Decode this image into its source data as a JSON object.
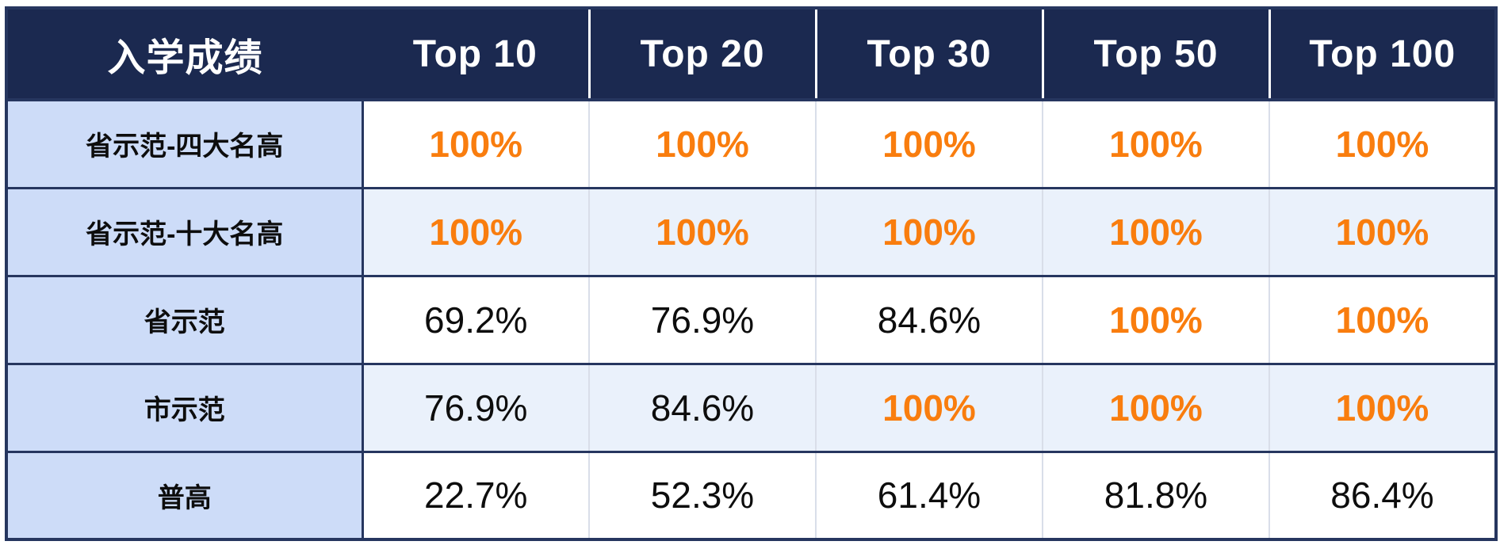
{
  "colors": {
    "header_bg": "#1B2950",
    "header_text": "#FFFFFF",
    "border_navy": "#26365F",
    "label_cell_bg": "#CDDCF8",
    "alt_row_bg": "#EAF1FB",
    "row_bg": "#FFFFFF",
    "value_text": "#0D0D0D",
    "highlight_orange": "#F97D0E",
    "column_separator_light": "#D9DEE9"
  },
  "table": {
    "corner_label": "入学成绩",
    "columns": [
      "Top 10",
      "Top 20",
      "Top 30",
      "Top 50",
      "Top 100"
    ],
    "rows": [
      {
        "label": "省示范-四大名高",
        "cells": [
          {
            "text": "100%",
            "highlight": true
          },
          {
            "text": "100%",
            "highlight": true
          },
          {
            "text": "100%",
            "highlight": true
          },
          {
            "text": "100%",
            "highlight": true
          },
          {
            "text": "100%",
            "highlight": true
          }
        ]
      },
      {
        "label": "省示范-十大名高",
        "cells": [
          {
            "text": "100%",
            "highlight": true
          },
          {
            "text": "100%",
            "highlight": true
          },
          {
            "text": "100%",
            "highlight": true
          },
          {
            "text": "100%",
            "highlight": true
          },
          {
            "text": "100%",
            "highlight": true
          }
        ]
      },
      {
        "label": "省示范",
        "cells": [
          {
            "text": "69.2%",
            "highlight": false
          },
          {
            "text": "76.9%",
            "highlight": false
          },
          {
            "text": "84.6%",
            "highlight": false
          },
          {
            "text": "100%",
            "highlight": true
          },
          {
            "text": "100%",
            "highlight": true
          }
        ]
      },
      {
        "label": "市示范",
        "cells": [
          {
            "text": "76.9%",
            "highlight": false
          },
          {
            "text": "84.6%",
            "highlight": false
          },
          {
            "text": "100%",
            "highlight": true
          },
          {
            "text": "100%",
            "highlight": true
          },
          {
            "text": "100%",
            "highlight": true
          }
        ]
      },
      {
        "label": "普高",
        "cells": [
          {
            "text": "22.7%",
            "highlight": false
          },
          {
            "text": "52.3%",
            "highlight": false
          },
          {
            "text": "61.4%",
            "highlight": false
          },
          {
            "text": "81.8%",
            "highlight": false
          },
          {
            "text": "86.4%",
            "highlight": false
          }
        ]
      }
    ]
  },
  "chart_data": {
    "type": "table",
    "title": "入学成绩",
    "columns": [
      "Top 10",
      "Top 20",
      "Top 30",
      "Top 50",
      "Top 100"
    ],
    "row_labels": [
      "省示范-四大名高",
      "省示范-十大名高",
      "省示范",
      "市示范",
      "普高"
    ],
    "values_percent": [
      [
        100,
        100,
        100,
        100,
        100
      ],
      [
        100,
        100,
        100,
        100,
        100
      ],
      [
        69.2,
        76.9,
        84.6,
        100,
        100
      ],
      [
        76.9,
        84.6,
        100,
        100,
        100
      ],
      [
        22.7,
        52.3,
        61.4,
        81.8,
        86.4
      ]
    ],
    "highlight_rule": "100% values rendered bold orange (#F97D0E); other values plain black",
    "layout": "first column = school-tier row labels on periwinkle background; header row navy with white bold text; body rows alternate white / pale blue"
  }
}
